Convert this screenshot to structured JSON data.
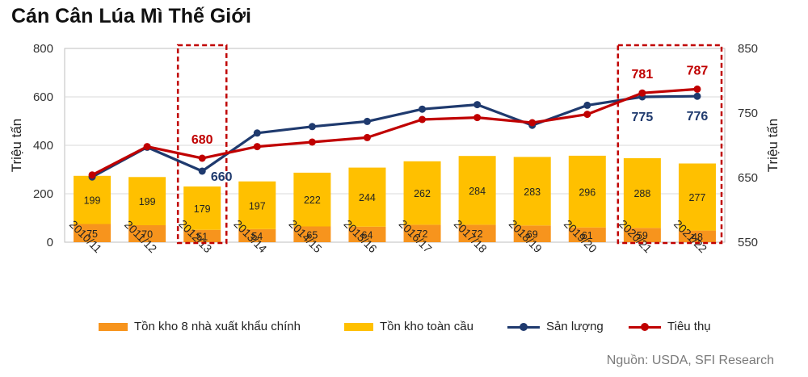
{
  "title": "Cán Cân Lúa Mì Thế Giới",
  "source": "Nguồn: USDA, SFI Research",
  "colors": {
    "exporters": "#f7941d",
    "global": "#ffc000",
    "production": "#1f3a6e",
    "consumption": "#c00000",
    "highlight_box": "#c00000"
  },
  "chart_data": {
    "type": "bar",
    "categories": [
      "2010/11",
      "2011/12",
      "2012/13",
      "2013/14",
      "2014/15",
      "2015/16",
      "2016/17",
      "2017/18",
      "2018/19",
      "2019/20",
      "2020/21",
      "2021/22"
    ],
    "left_axis": {
      "label": "Triệu tấn",
      "ylim": [
        0,
        800
      ],
      "ticks": [
        "0",
        "200",
        "400",
        "600",
        "800"
      ]
    },
    "right_axis": {
      "label": "Triệu tấn",
      "ylim": [
        550,
        850
      ],
      "ticks": [
        "550",
        "650",
        "750",
        "850"
      ]
    },
    "stacked_bars": [
      {
        "name": "Tồn kho 8 nhà xuất khẩu chính",
        "axis": "left",
        "values": [
          75,
          70,
          51,
          54,
          65,
          64,
          72,
          72,
          69,
          61,
          59,
          48
        ]
      },
      {
        "name": "Tồn kho toàn cầu",
        "axis": "left",
        "values": [
          199,
          199,
          179,
          197,
          222,
          244,
          262,
          284,
          283,
          296,
          288,
          277
        ]
      }
    ],
    "lines": [
      {
        "name": "Sản lượng",
        "axis": "right",
        "values": [
          651,
          697,
          660,
          719,
          729,
          737,
          756,
          763,
          731,
          762,
          775,
          776
        ]
      },
      {
        "name": "Tiêu thụ",
        "axis": "right",
        "values": [
          654,
          698,
          680,
          698,
          705,
          712,
          740,
          743,
          735,
          748,
          781,
          787
        ]
      }
    ],
    "callouts": [
      {
        "series": "Tiêu thụ",
        "index": 2,
        "text": "680"
      },
      {
        "series": "Sản lượng",
        "index": 2,
        "text": "660"
      },
      {
        "series": "Tiêu thụ",
        "index": 10,
        "text": "781"
      },
      {
        "series": "Sản lượng",
        "index": 10,
        "text": "775"
      },
      {
        "series": "Tiêu thụ",
        "index": 11,
        "text": "787"
      },
      {
        "series": "Sản lượng",
        "index": 11,
        "text": "776"
      }
    ],
    "highlight_categories": [
      "2012/13",
      "2020/21",
      "2021/22"
    ],
    "grid": true,
    "legend_position": "bottom"
  }
}
